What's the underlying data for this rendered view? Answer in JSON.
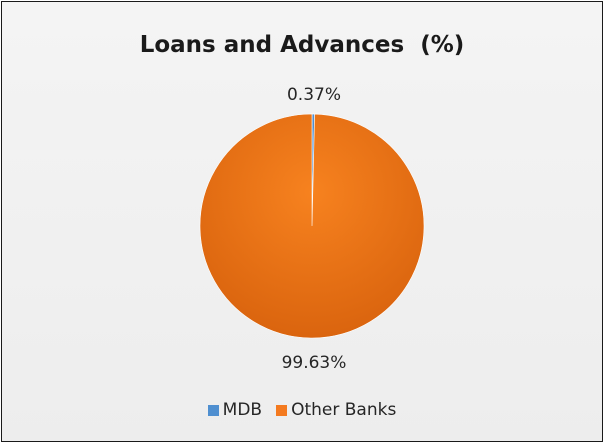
{
  "chart_data": {
    "type": "pie",
    "title": "Loans and Advances  (%)",
    "categories": [
      "MDB",
      "Other Banks"
    ],
    "values": [
      0.37,
      99.63
    ],
    "data_labels": [
      "0.37%",
      "99.63%"
    ],
    "colors": [
      "#4f8fd0",
      "#f47a1f"
    ],
    "legend_position": "bottom"
  }
}
